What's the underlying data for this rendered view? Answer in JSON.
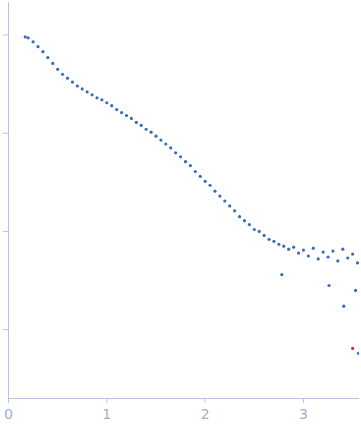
{
  "chart_data": {
    "type": "scatter",
    "xlim": [
      0,
      3.57
    ],
    "xticks": [
      0,
      1,
      2,
      3
    ],
    "ylim": [
      -3.7,
      0.33
    ],
    "yticks": [
      -3,
      -2,
      -1,
      0
    ],
    "tick_labels": "x",
    "series": [
      {
        "color": "#3a6bb5",
        "marker": "circle",
        "x": [
          0.17,
          0.2,
          0.25,
          0.3,
          0.35,
          0.4,
          0.45,
          0.5,
          0.55,
          0.6,
          0.65,
          0.7,
          0.75,
          0.8,
          0.85,
          0.9,
          0.95,
          1.0,
          1.05,
          1.1,
          1.15,
          1.2,
          1.25,
          1.3,
          1.35,
          1.4,
          1.45,
          1.5,
          1.55,
          1.6,
          1.65,
          1.7,
          1.75,
          1.8,
          1.85,
          1.9,
          1.95,
          2.0,
          2.05,
          2.1,
          2.15,
          2.2,
          2.25,
          2.3,
          2.35,
          2.4,
          2.45,
          2.5,
          2.55,
          2.6,
          2.65,
          2.7,
          2.75,
          2.78,
          2.8,
          2.85,
          2.9,
          2.95,
          3.0,
          3.05,
          3.1,
          3.15,
          3.2,
          3.25,
          3.26,
          3.3,
          3.35,
          3.4,
          3.41,
          3.45,
          3.5,
          3.53,
          3.55,
          3.56
        ],
        "values": [
          -0.02,
          -0.03,
          -0.07,
          -0.12,
          -0.17,
          -0.23,
          -0.29,
          -0.35,
          -0.4,
          -0.44,
          -0.48,
          -0.52,
          -0.55,
          -0.58,
          -0.61,
          -0.64,
          -0.66,
          -0.69,
          -0.72,
          -0.76,
          -0.79,
          -0.82,
          -0.85,
          -0.89,
          -0.92,
          -0.96,
          -0.99,
          -1.03,
          -1.07,
          -1.11,
          -1.15,
          -1.2,
          -1.24,
          -1.29,
          -1.33,
          -1.39,
          -1.44,
          -1.49,
          -1.53,
          -1.59,
          -1.64,
          -1.69,
          -1.74,
          -1.79,
          -1.85,
          -1.89,
          -1.93,
          -1.98,
          -2.0,
          -2.04,
          -2.08,
          -2.1,
          -2.13,
          -2.44,
          -2.15,
          -2.18,
          -2.16,
          -2.22,
          -2.19,
          -2.25,
          -2.17,
          -2.28,
          -2.21,
          -2.26,
          -2.55,
          -2.2,
          -2.3,
          -2.18,
          -2.76,
          -2.27,
          -2.23,
          -2.6,
          -2.32,
          -3.24
        ]
      },
      {
        "color": "#d62728",
        "marker": "circle",
        "x": [
          3.5
        ],
        "values": [
          -3.19
        ]
      }
    ]
  }
}
